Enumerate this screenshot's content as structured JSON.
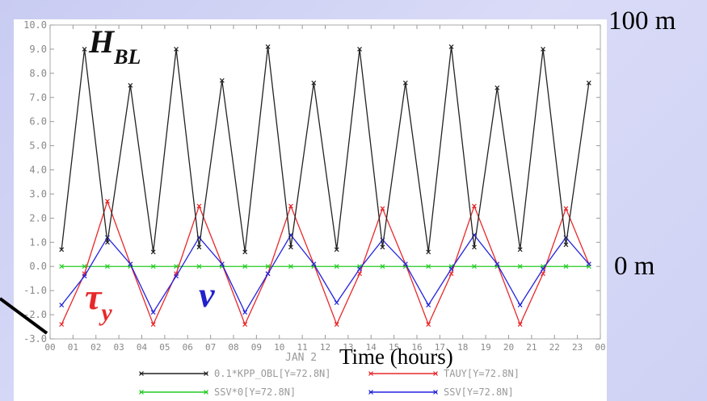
{
  "chart_data": {
    "type": "line",
    "xlabel": "Time (hours)",
    "date_label": "JAN 2",
    "x_ticks": [
      "00",
      "01",
      "02",
      "03",
      "04",
      "05",
      "06",
      "07",
      "08",
      "09",
      "10",
      "11",
      "12",
      "13",
      "14",
      "15",
      "16",
      "17",
      "18",
      "19",
      "20",
      "21",
      "22",
      "23",
      "00"
    ],
    "x": [
      0.5,
      1.5,
      2.5,
      3.5,
      4.5,
      5.5,
      6.5,
      7.5,
      8.5,
      9.5,
      10.5,
      11.5,
      12.5,
      13.5,
      14.5,
      15.5,
      16.5,
      17.5,
      18.5,
      19.5,
      20.5,
      21.5,
      22.5,
      23.5
    ],
    "xlim": [
      0,
      24
    ],
    "ylim": [
      -3.0,
      10.0
    ],
    "y_ticks": [
      "10.0",
      "9.0",
      "8.0",
      "7.0",
      "6.0",
      "5.0",
      "4.0",
      "3.0",
      "2.0",
      "1.0",
      "0.0",
      "-1.0",
      "-2.0",
      "-3.0"
    ],
    "grid": false,
    "legend_position": "bottom",
    "series": [
      {
        "name": "0.1*KPP_OBL[Y=72.8N]",
        "color": "#222222",
        "marker": "x",
        "values": [
          0.7,
          9.0,
          1.0,
          7.5,
          0.6,
          9.0,
          0.8,
          7.7,
          0.6,
          9.1,
          0.8,
          7.6,
          0.7,
          9.0,
          0.8,
          7.6,
          0.6,
          9.1,
          0.8,
          7.4,
          0.7,
          9.0,
          0.9,
          7.6
        ]
      },
      {
        "name": "TAUY[Y=72.8N]",
        "color": "#e8282a",
        "marker": "x",
        "values": [
          -2.4,
          -0.3,
          2.7,
          0.1,
          -2.4,
          -0.3,
          2.5,
          0.1,
          -2.4,
          -0.3,
          2.5,
          0.1,
          -2.4,
          -0.3,
          2.4,
          0.1,
          -2.4,
          -0.3,
          2.5,
          0.1,
          -2.4,
          -0.3,
          2.4,
          0.1
        ]
      },
      {
        "name": "SSV*0[Y=72.8N]",
        "color": "#22cc22",
        "marker": "x",
        "values": [
          0,
          0,
          0,
          0,
          0,
          0,
          0,
          0,
          0,
          0,
          0,
          0,
          0,
          0,
          0,
          0,
          0,
          0,
          0,
          0,
          0,
          0,
          0,
          0
        ]
      },
      {
        "name": "SSV[Y=72.8N]",
        "color": "#2222dd",
        "marker": "x",
        "values": [
          -1.6,
          -0.4,
          1.2,
          0.1,
          -1.9,
          -0.4,
          1.2,
          0.1,
          -1.9,
          -0.3,
          1.3,
          0.1,
          -1.5,
          -0.1,
          1.1,
          0.1,
          -1.6,
          -0.1,
          1.3,
          0.1,
          -1.6,
          -0.1,
          1.2,
          0.1
        ]
      }
    ],
    "annotations": {
      "hbl_main": "H",
      "hbl_sub": "BL",
      "tau_main": "τ",
      "tau_sub": "y",
      "v_label": "v",
      "right_top": "100 m",
      "right_zero": "0 m"
    }
  }
}
